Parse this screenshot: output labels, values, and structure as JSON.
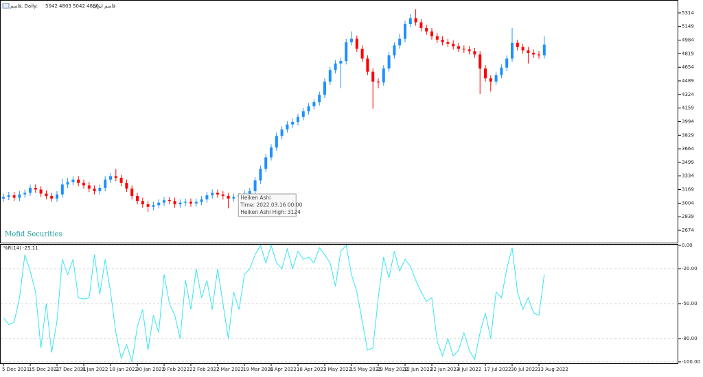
{
  "chart_data": [
    {
      "type": "candlestick",
      "title": "قاسم, Daily:",
      "ohlc_text": "5042 4803 5042 4880",
      "subtitle": "قاسم ایران",
      "watermark": "Mofid Securities",
      "up_color": "#1e90ff",
      "down_color": "#ff0000",
      "ylim": [
        2516,
        5463
      ],
      "yticks": [
        5314,
        5149,
        4984,
        4819,
        4654,
        4489,
        4324,
        4159,
        3994,
        3829,
        3664,
        3499,
        3334,
        3169,
        3004,
        2839,
        2674
      ],
      "categories": [
        "5 Dec 2021",
        null,
        null,
        null,
        null,
        "15 Dec 2021",
        null,
        null,
        null,
        null,
        "27 Dec 2021",
        null,
        null,
        null,
        null,
        "8 Jan 2022",
        null,
        null,
        null,
        null,
        "18 Jan 2022",
        null,
        null,
        null,
        null,
        "30 Jan 2022",
        null,
        null,
        null,
        null,
        "9 Feb 2022",
        null,
        null,
        null,
        null,
        "22 Feb 2022",
        null,
        null,
        null,
        null,
        "7 Mar 2022",
        null,
        null,
        null,
        null,
        "19 Mar 2022",
        null,
        null,
        null,
        null,
        "6 Apr 2022",
        null,
        null,
        null,
        null,
        "18 Apr 2022",
        null,
        null,
        null,
        null,
        "1 May 2022",
        null,
        null,
        null,
        null,
        "15 May 2022",
        null,
        null,
        null,
        null,
        "29 May 2022",
        null,
        null,
        null,
        null,
        "12 Jun 2022",
        null,
        null,
        null,
        null,
        "22 Jun 2022",
        null,
        null,
        null,
        null,
        "4 Jul 2022",
        null,
        null,
        null,
        null,
        "17 Jul 2022",
        null,
        null,
        null,
        null,
        "30 Jul 2022",
        null,
        null,
        null,
        null,
        "13 Aug 2022",
        null
      ],
      "open": [
        3060,
        3080,
        3100,
        3070,
        3110,
        3130,
        3190,
        3170,
        3120,
        3090,
        3060,
        3110,
        3230,
        3260,
        3290,
        3250,
        3220,
        3180,
        3150,
        3190,
        3290,
        3330,
        3310,
        3250,
        3180,
        3090,
        3030,
        2990,
        2960,
        2980,
        3010,
        3040,
        3030,
        2990,
        3010,
        3020,
        3000,
        3020,
        3050,
        3100,
        3130,
        3110,
        3090,
        3060,
        3080,
        3100,
        3120,
        3150,
        3280,
        3420,
        3560,
        3680,
        3820,
        3900,
        3960,
        3990,
        4050,
        4120,
        4180,
        4230,
        4320,
        4480,
        4620,
        4700,
        4730,
        4960,
        5000,
        4880,
        4760,
        4600,
        4480,
        4470,
        4640,
        4800,
        4920,
        5000,
        5180,
        5250,
        5200,
        5130,
        5090,
        5030,
        4990,
        4960,
        4940,
        4910,
        4880,
        4870,
        4850,
        4810,
        4640,
        4520,
        4480,
        4560,
        4650,
        4760,
        4950,
        4900,
        4860,
        4830,
        4810,
        4800
      ],
      "high": [
        3120,
        3140,
        3140,
        3150,
        3170,
        3230,
        3230,
        3210,
        3160,
        3130,
        3150,
        3300,
        3310,
        3330,
        3330,
        3290,
        3260,
        3220,
        3230,
        3330,
        3370,
        3420,
        3350,
        3290,
        3220,
        3130,
        3070,
        3030,
        3020,
        3050,
        3080,
        3080,
        3070,
        3050,
        3060,
        3060,
        3060,
        3090,
        3140,
        3170,
        3170,
        3150,
        3130,
        3120,
        3124,
        3160,
        3190,
        3320,
        3460,
        3600,
        3720,
        3860,
        3940,
        4000,
        4030,
        4090,
        4160,
        4220,
        4270,
        4360,
        4520,
        4660,
        4740,
        4770,
        5000,
        5090,
        5040,
        4920,
        4800,
        4640,
        4520,
        4680,
        4840,
        4960,
        5060,
        5220,
        5300,
        5360,
        5240,
        5170,
        5130,
        5070,
        5030,
        5000,
        4980,
        4950,
        4920,
        4910,
        4890,
        4850,
        4680,
        4560,
        4600,
        4690,
        4800,
        5130,
        4990,
        4940,
        4900,
        4870,
        4850,
        5030
      ],
      "low": [
        3020,
        3040,
        3030,
        3030,
        3070,
        3090,
        3130,
        3080,
        3050,
        3020,
        3020,
        3070,
        3190,
        3220,
        3210,
        3180,
        3140,
        3110,
        3110,
        3150,
        3250,
        3270,
        3210,
        3140,
        3050,
        2990,
        2950,
        2900,
        2920,
        2940,
        2970,
        2990,
        2950,
        2950,
        2970,
        2960,
        2960,
        2980,
        3010,
        3060,
        3070,
        3050,
        2940,
        3020,
        3040,
        3060,
        3080,
        3110,
        3240,
        3380,
        3520,
        3640,
        3780,
        3860,
        3920,
        3950,
        4010,
        4080,
        4140,
        4190,
        4280,
        4440,
        4580,
        4400,
        4690,
        4920,
        4840,
        4720,
        4560,
        4150,
        4400,
        4430,
        4600,
        4760,
        4880,
        4960,
        5140,
        5160,
        5090,
        5050,
        4990,
        4950,
        4920,
        4900,
        4870,
        4840,
        4830,
        4810,
        4770,
        4330,
        4480,
        4360,
        4440,
        4520,
        4610,
        4720,
        4860,
        4820,
        4700,
        4770,
        4760,
        4760
      ],
      "close": [
        3080,
        3100,
        3070,
        3110,
        3130,
        3190,
        3170,
        3120,
        3090,
        3060,
        3110,
        3230,
        3260,
        3290,
        3250,
        3220,
        3180,
        3150,
        3190,
        3290,
        3330,
        3310,
        3250,
        3180,
        3090,
        3030,
        2990,
        2960,
        2980,
        3010,
        3040,
        3030,
        2990,
        3010,
        3020,
        3000,
        3020,
        3050,
        3100,
        3130,
        3110,
        3090,
        3060,
        3080,
        3100,
        3120,
        3150,
        3280,
        3420,
        3560,
        3680,
        3820,
        3900,
        3960,
        3990,
        4050,
        4120,
        4180,
        4230,
        4320,
        4480,
        4620,
        4700,
        4730,
        4960,
        5000,
        4880,
        4760,
        4600,
        4480,
        4470,
        4640,
        4800,
        4920,
        5000,
        5180,
        5250,
        5200,
        5130,
        5090,
        5030,
        4990,
        4960,
        4940,
        4910,
        4880,
        4870,
        4850,
        4810,
        4640,
        4520,
        4480,
        4560,
        4650,
        4760,
        4950,
        4900,
        4860,
        4830,
        4810,
        4800,
        4930
      ],
      "tooltip": {
        "index": 44,
        "lines": [
          "Heiken Ashi",
          "Time: 2022.03.16 00:00",
          "Heiken Ashi High: 3124"
        ]
      }
    },
    {
      "type": "line",
      "title": "%R(14) -25.11",
      "color": "#33e6f2",
      "grid": true,
      "ylim": [
        -101.8,
        0.6
      ],
      "yticks": [
        {
          "value": 0,
          "label": "0.00"
        },
        {
          "value": -20,
          "label": "-20.00"
        },
        {
          "value": -50,
          "label": "-50.00"
        },
        {
          "value": -80,
          "label": "-80.00"
        },
        {
          "value": -100,
          "label": "-100.00"
        }
      ],
      "values": [
        -62,
        -68,
        -66,
        -45,
        -8,
        -22,
        -40,
        -88,
        -50,
        -92,
        -65,
        -12,
        -25,
        -12,
        -45,
        -46,
        -45,
        -8,
        -42,
        -12,
        -40,
        -75,
        -97,
        -85,
        -100,
        -70,
        -55,
        -90,
        -60,
        -75,
        -25,
        -50,
        -60,
        -80,
        -30,
        -55,
        -20,
        -45,
        -30,
        -55,
        -20,
        -50,
        -80,
        -40,
        -55,
        -25,
        -20,
        -8,
        0,
        -15,
        0,
        -15,
        -20,
        -3,
        -20,
        -5,
        -12,
        -10,
        -15,
        -2,
        -8,
        -15,
        -35,
        -5,
        0,
        -25,
        -40,
        -65,
        -90,
        -88,
        -45,
        -10,
        -28,
        -5,
        -22,
        -12,
        -18,
        -30,
        -40,
        -48,
        -45,
        -82,
        -95,
        -80,
        -95,
        -90,
        -75,
        -90,
        -98,
        -75,
        -58,
        -80,
        -40,
        -45,
        -20,
        -2,
        -40,
        -55,
        -45,
        -58,
        -60,
        -25
      ]
    }
  ]
}
